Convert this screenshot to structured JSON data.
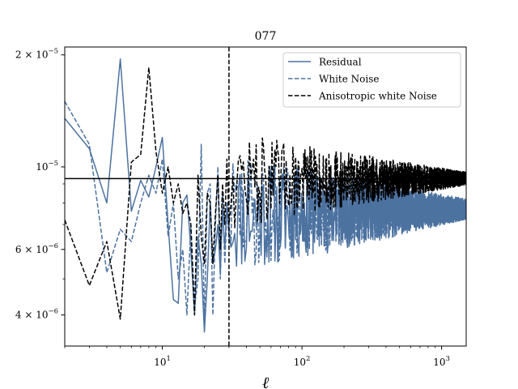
{
  "chart_data": {
    "type": "line",
    "title": "077",
    "xlabel": "ℓ",
    "ylabel": "",
    "xscale": "log",
    "yscale": "log",
    "xlim": [
      2,
      1500
    ],
    "ylim": [
      3.3e-06,
      2.1e-05
    ],
    "grid": false,
    "legend_position": "top-right",
    "x_ticks": [
      {
        "value": 10,
        "base": "10",
        "exp": "1"
      },
      {
        "value": 100,
        "base": "10",
        "exp": "2"
      },
      {
        "value": 1000,
        "base": "10",
        "exp": "3"
      }
    ],
    "y_ticks": [
      {
        "value": 4e-06,
        "mant": "4 × 10",
        "exp": "−6"
      },
      {
        "value": 6e-06,
        "mant": "6 × 10",
        "exp": "−6"
      },
      {
        "value": 1e-05,
        "mant": "10",
        "exp": "−5"
      },
      {
        "value": 2e-05,
        "mant": "2 × 10",
        "exp": "−5"
      }
    ],
    "hline": 9.3e-06,
    "vline": 30,
    "series": [
      {
        "name": "Residual",
        "color": "#4c72a0",
        "dash": "solid",
        "x": [
          2,
          3,
          4,
          5,
          6,
          7,
          8,
          9,
          10,
          11,
          12,
          13,
          14,
          15,
          16,
          17,
          18,
          19,
          20,
          21,
          22,
          23,
          24,
          25,
          26,
          27,
          28,
          29,
          30
        ],
        "y": [
          1.35e-05,
          1.12e-05,
          8e-06,
          1.95e-05,
          7.6e-06,
          9.2e-06,
          8.3e-06,
          1e-05,
          1.2e-05,
          7e-06,
          4.4e-06,
          4.3e-06,
          8e-06,
          8.4e-06,
          6e-06,
          4e-06,
          6.5e-06,
          5.5e-06,
          3.6e-06,
          5e-06,
          8e-06,
          5.5e-06,
          6e-06,
          7e-06,
          5.2e-06,
          7.6e-06,
          6e-06,
          8e-06,
          6.5e-06
        ],
        "tail": {
          "from": 30,
          "center_start": 7.4e-06,
          "center_end": 7.6e-06,
          "amp_start": 0.38,
          "amp_end": 0.05,
          "seed": 11
        }
      },
      {
        "name": "White Noise",
        "color": "#4c72a0",
        "dash": "dashed",
        "x": [
          2,
          3,
          4,
          5,
          6,
          7,
          8,
          9,
          10,
          11,
          12,
          13,
          14,
          15,
          16,
          17,
          18,
          19,
          20,
          21,
          22,
          23,
          24,
          25,
          26,
          27,
          28,
          29,
          30
        ],
        "y": [
          1.5e-05,
          1.15e-05,
          5.2e-06,
          6.8e-06,
          6.3e-06,
          8e-06,
          9.5e-06,
          8.5e-06,
          1.05e-05,
          6.5e-06,
          8e-06,
          5e-06,
          6e-06,
          4e-06,
          7e-06,
          4.2e-06,
          5e-06,
          1.15e-05,
          3.8e-06,
          8.5e-06,
          9e-06,
          4e-06,
          7e-06,
          1e-05,
          5e-06,
          8.5e-06,
          5.5e-06,
          7.5e-06,
          7e-06
        ],
        "tail": {
          "from": 30,
          "center_start": 7.5e-06,
          "center_end": 7.8e-06,
          "amp_start": 0.38,
          "amp_end": 0.05,
          "seed": 29
        }
      },
      {
        "name": "Anisotropic white Noise",
        "color": "#000000",
        "dash": "dashed",
        "x": [
          2,
          3,
          4,
          5,
          6,
          7,
          8,
          9,
          10,
          11,
          12,
          13,
          14,
          15,
          16,
          17,
          18,
          19,
          20,
          21,
          22,
          23,
          24,
          25,
          26,
          27,
          28,
          29,
          30
        ],
        "y": [
          7.2e-06,
          4.8e-06,
          6.3e-06,
          3.9e-06,
          1.03e-05,
          1.08e-05,
          1.85e-05,
          1.1e-05,
          8.5e-06,
          1e-05,
          8e-06,
          9e-06,
          7.5e-06,
          8e-06,
          7e-06,
          4e-06,
          9.5e-06,
          6.5e-06,
          5.5e-06,
          8.5e-06,
          8e-06,
          5.5e-06,
          7.5e-06,
          9.5e-06,
          6e-06,
          9e-06,
          7e-06,
          1.05e-05,
          7e-06
        ],
        "tail": {
          "from": 30,
          "center_start": 9.2e-06,
          "center_end": 9.3e-06,
          "amp_start": 0.3,
          "amp_end": 0.04,
          "seed": 47
        }
      }
    ]
  }
}
